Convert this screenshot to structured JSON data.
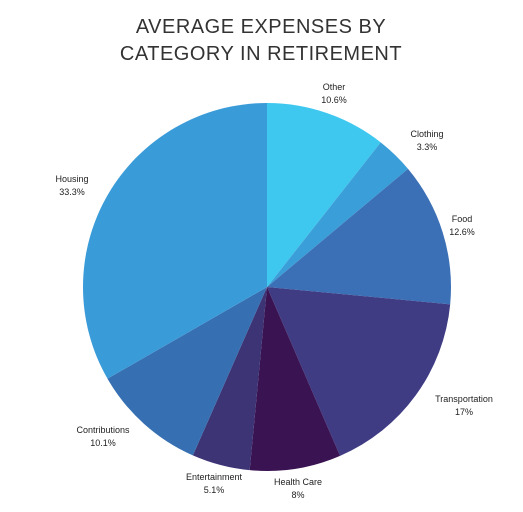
{
  "chart_data": {
    "type": "pie",
    "title": "AVERAGE EXPENSES BY CATEGORY IN RETIREMENT",
    "categories": [
      "Other",
      "Clothing",
      "Food",
      "Transportation",
      "Health Care",
      "Entertainment",
      "Contributions",
      "Housing"
    ],
    "values": [
      10.6,
      3.3,
      12.6,
      17,
      8,
      5.1,
      10.1,
      33.3
    ],
    "value_labels": [
      "10.6%",
      "3.3%",
      "12.6%",
      "17%",
      "8%",
      "5.1%",
      "10.1%",
      "33.3%"
    ],
    "colors": [
      "#3fc8ef",
      "#3a9fd9",
      "#3b70b6",
      "#3f3c84",
      "#3a1352",
      "#3c3475",
      "#3670b2",
      "#3a9bd9"
    ]
  }
}
